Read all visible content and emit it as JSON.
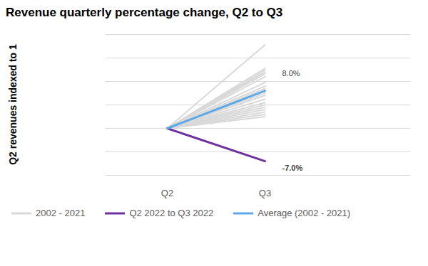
{
  "chart_data": {
    "type": "line",
    "title": "Revenue quarterly percentage change, Q2 to Q3",
    "y_label": "Q2 revenues indexed to 1",
    "categories": [
      "Q2",
      "Q3"
    ],
    "series": [
      {
        "name": "2002 - 2021",
        "color": "#d9d9d9",
        "values": [
          [
            1,
            1.178
          ],
          [
            1,
            1.128
          ],
          [
            1,
            1.124
          ],
          [
            1,
            1.12
          ],
          [
            1,
            1.116
          ],
          [
            1,
            1.11
          ],
          [
            1,
            1.098
          ],
          [
            1,
            1.09
          ],
          [
            1,
            1.085
          ],
          [
            1,
            1.08
          ],
          [
            1,
            1.075
          ],
          [
            1,
            1.07
          ],
          [
            1,
            1.062
          ],
          [
            1,
            1.055
          ],
          [
            1,
            1.05
          ],
          [
            1,
            1.045
          ],
          [
            1,
            1.04
          ],
          [
            1,
            1.035
          ],
          [
            1,
            1.03
          ],
          [
            1,
            1.025
          ]
        ]
      },
      {
        "name": "Q2 2022 to Q3 2022",
        "color": "#7030a0",
        "values": [
          1,
          0.93
        ]
      },
      {
        "name": "Average (2002 - 2021)",
        "color": "#5aa9e6",
        "values": [
          1,
          1.08
        ]
      }
    ],
    "annotations": [
      {
        "text": "8.0%",
        "x": "Q3",
        "y": 1.08
      },
      {
        "text": "-7.0%",
        "x": "Q3",
        "y": 0.93
      }
    ],
    "ylim": [
      0.9,
      1.2
    ],
    "yticks": [
      0.9,
      0.95,
      1.0,
      1.05,
      1.1,
      1.15,
      1.2
    ],
    "grid": true,
    "tick_labels": "x",
    "legend": "bottom"
  }
}
